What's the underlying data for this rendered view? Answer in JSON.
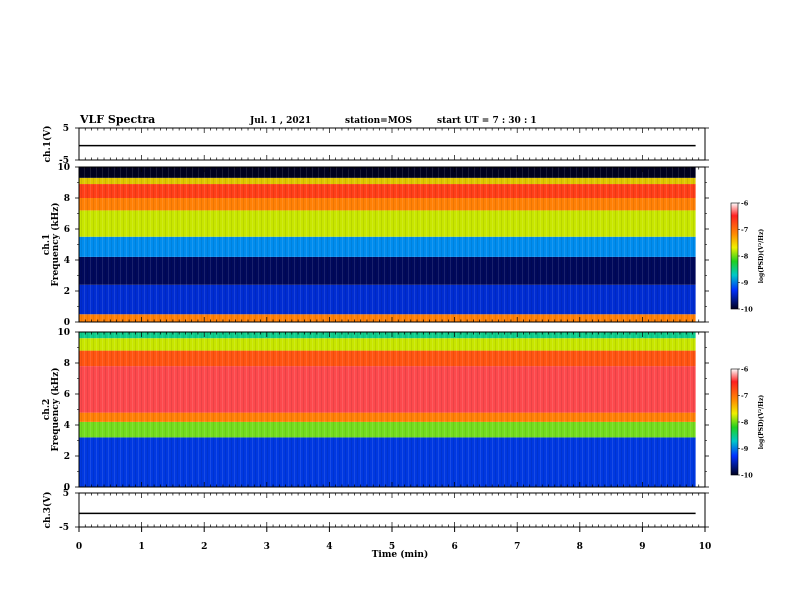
{
  "header": {
    "title": "VLF Spectra",
    "date": "Jul. 1 , 2021",
    "station": "station=MOS",
    "start": "start UT = 7 : 30 : 1"
  },
  "chart_data": [
    {
      "type": "line",
      "name": "ch.1 waveform",
      "ylabel": "ch.1(V)",
      "ylim": [
        -5,
        5
      ],
      "yticks": [
        5,
        -5
      ],
      "level": -0.5
    },
    {
      "type": "heatmap",
      "ylabel_ch": "ch.1",
      "ylabel": "Frequency (kHz)",
      "ylim": [
        0,
        10
      ],
      "yticks": [
        0,
        2,
        4,
        6,
        8,
        10
      ],
      "colorbar": {
        "label": "log(PSD)(V²/Hz)",
        "range": [
          -10,
          -6
        ],
        "ticks": [
          -6,
          -7,
          -8,
          -9,
          -10
        ]
      },
      "bands": [
        {
          "f0": 0,
          "f1": 0.5,
          "level": -7.2
        },
        {
          "f0": 0.5,
          "f1": 2.4,
          "level": -9.3
        },
        {
          "f0": 2.4,
          "f1": 4.2,
          "level": -9.8
        },
        {
          "f0": 4.2,
          "f1": 5.5,
          "level": -8.8
        },
        {
          "f0": 5.5,
          "f1": 7.2,
          "level": -7.8
        },
        {
          "f0": 7.2,
          "f1": 8.0,
          "level": -7.2
        },
        {
          "f0": 8.0,
          "f1": 8.9,
          "level": -6.9
        },
        {
          "f0": 8.9,
          "f1": 9.3,
          "level": -7.6
        },
        {
          "f0": 9.3,
          "f1": 10.0,
          "level": -10.0
        }
      ]
    },
    {
      "type": "heatmap",
      "ylabel_ch": "ch.2",
      "ylabel": "Frequency (kHz)",
      "ylim": [
        0,
        10
      ],
      "yticks": [
        0,
        2,
        4,
        6,
        8,
        10
      ],
      "colorbar": {
        "label": "log(PSD)(V²/Hz)",
        "range": [
          -10,
          -6
        ],
        "ticks": [
          -6,
          -7,
          -8,
          -9,
          -10
        ]
      },
      "bands": [
        {
          "f0": 0,
          "f1": 3.2,
          "level": -9.2
        },
        {
          "f0": 3.2,
          "f1": 4.2,
          "level": -8.0
        },
        {
          "f0": 4.2,
          "f1": 4.8,
          "level": -7.2
        },
        {
          "f0": 4.8,
          "f1": 7.8,
          "level": -6.4
        },
        {
          "f0": 7.8,
          "f1": 8.8,
          "level": -7.0
        },
        {
          "f0": 8.8,
          "f1": 9.6,
          "level": -7.8
        },
        {
          "f0": 9.6,
          "f1": 10.0,
          "level": -8.4
        }
      ]
    },
    {
      "type": "line",
      "name": "ch.3 waveform",
      "ylabel": "ch.3(V)",
      "ylim": [
        -5,
        5
      ],
      "yticks": [
        5,
        -5
      ],
      "level": -1.0
    }
  ],
  "xaxis": {
    "label": "Time (min)",
    "range": [
      0,
      10
    ],
    "ticks": [
      0,
      1,
      2,
      3,
      4,
      5,
      6,
      7,
      8,
      9,
      10
    ],
    "data_end": 9.85
  }
}
